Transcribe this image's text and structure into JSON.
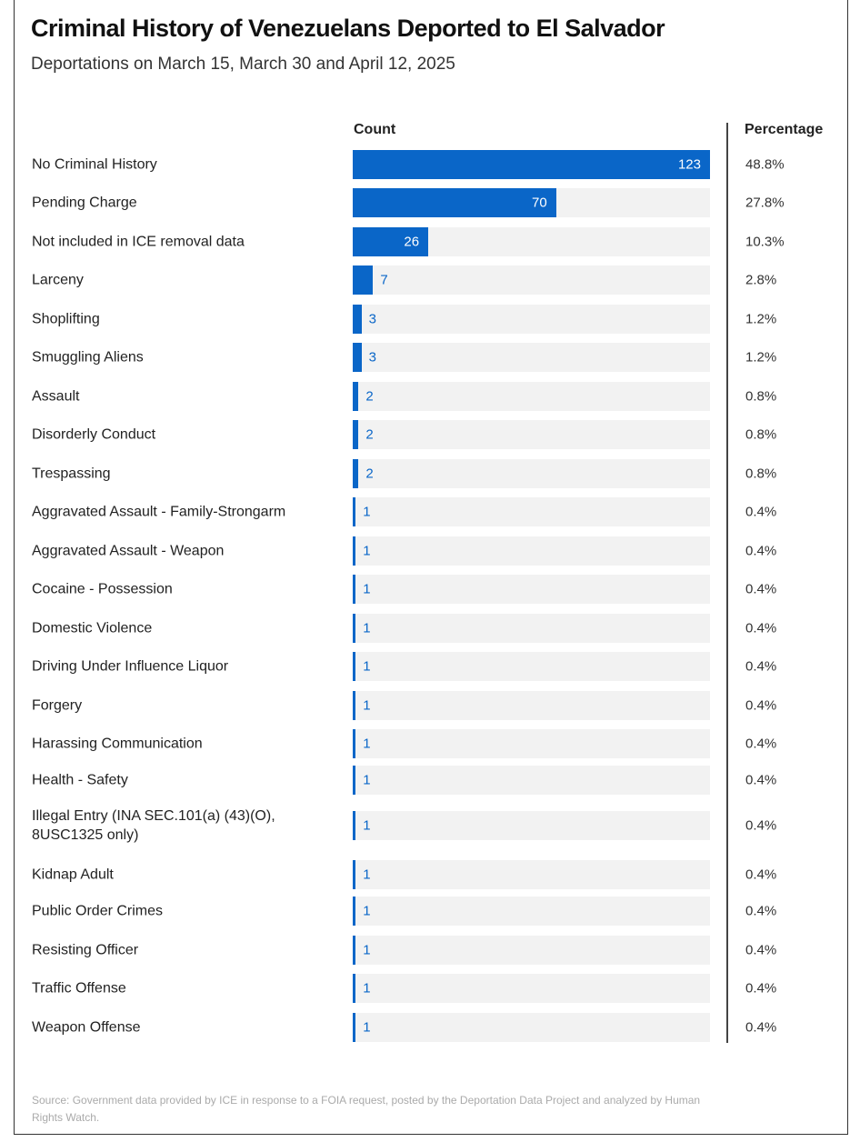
{
  "chart_data": {
    "type": "bar",
    "orientation": "horizontal",
    "title": "Criminal History of Venezuelans Deported to El Salvador",
    "subtitle": "Deportations on March 15, March 30 and April 12, 2025",
    "count_header": "Count",
    "percentage_header": "Percentage",
    "xlim": [
      0,
      123
    ],
    "bar_color": "#0a66c8",
    "categories": [
      "No Criminal History",
      "Pending Charge",
      "Not included in ICE removal data",
      "Larceny",
      "Shoplifting",
      "Smuggling Aliens",
      "Assault",
      "Disorderly Conduct",
      "Trespassing",
      "Aggravated Assault - Family-Strongarm",
      "Aggravated Assault - Weapon",
      "Cocaine - Possession",
      "Domestic Violence",
      "Driving Under Influence Liquor",
      "Forgery",
      "Harassing Communication",
      "Health - Safety",
      "Illegal Entry (INA SEC.101(a) (43)(O), 8USC1325 only)",
      "Kidnap Adult",
      "Public Order Crimes",
      "Resisting Officer",
      "Traffic Offense",
      "Weapon Offense"
    ],
    "values": [
      123,
      70,
      26,
      7,
      3,
      3,
      2,
      2,
      2,
      1,
      1,
      1,
      1,
      1,
      1,
      1,
      1,
      1,
      1,
      1,
      1,
      1,
      1
    ],
    "percentages": [
      "48.8%",
      "27.8%",
      "10.3%",
      "2.8%",
      "1.2%",
      "1.2%",
      "0.8%",
      "0.8%",
      "0.8%",
      "0.4%",
      "0.4%",
      "0.4%",
      "0.4%",
      "0.4%",
      "0.4%",
      "0.4%",
      "0.4%",
      "0.4%",
      "0.4%",
      "0.4%",
      "0.4%",
      "0.4%",
      "0.4%"
    ],
    "source": "Source: Government data provided by ICE in response to a FOIA request, posted by the Deportation Data Project and analyzed by Human Rights Watch."
  }
}
